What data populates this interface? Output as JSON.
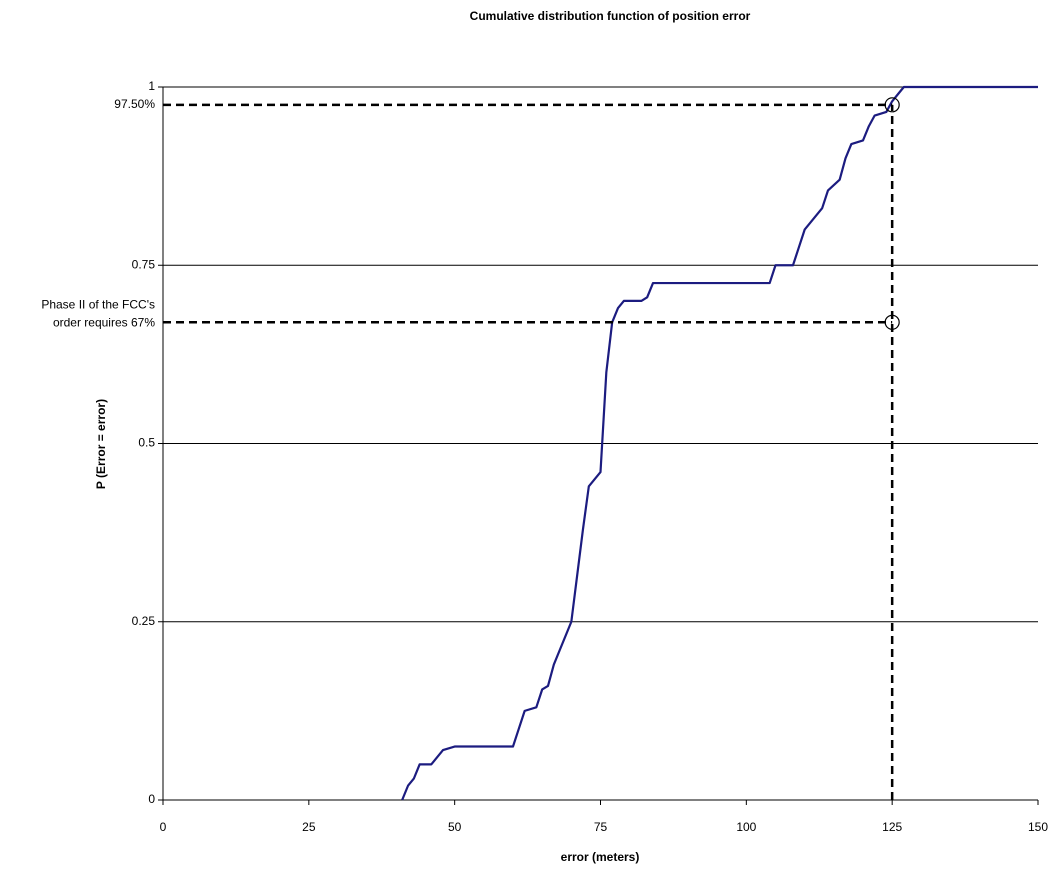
{
  "chart_data": {
    "type": "line",
    "title": "Cumulative distribution function of position error",
    "x_label": "error (meters)",
    "y_label": "P (Error = error)",
    "xlim": [
      0,
      150
    ],
    "ylim": [
      0,
      1
    ],
    "xticks": [
      0,
      25,
      50,
      75,
      100,
      125,
      150
    ],
    "yticks": [
      0,
      0.25,
      0.5,
      0.75,
      1
    ],
    "grid": true,
    "series": [
      {
        "color": "#1c1c80",
        "x": [
          41,
          42,
          43,
          44,
          46,
          47,
          48,
          50,
          60,
          61,
          62,
          64,
          65,
          66,
          67,
          68,
          70,
          72,
          73,
          74,
          75,
          76,
          77,
          78,
          79,
          82,
          83,
          84,
          104,
          105,
          108,
          109,
          110,
          111,
          113,
          114,
          116,
          117,
          118,
          120,
          121,
          122,
          124,
          125,
          126,
          127,
          150
        ],
        "values": [
          0,
          0.02,
          0.03,
          0.05,
          0.05,
          0.06,
          0.07,
          0.075,
          0.075,
          0.1,
          0.125,
          0.13,
          0.155,
          0.16,
          0.19,
          0.21,
          0.25,
          0.38,
          0.44,
          0.45,
          0.46,
          0.6,
          0.67,
          0.69,
          0.7,
          0.7,
          0.705,
          0.725,
          0.725,
          0.75,
          0.75,
          0.775,
          0.8,
          0.81,
          0.83,
          0.855,
          0.87,
          0.9,
          0.92,
          0.925,
          0.945,
          0.96,
          0.965,
          0.98,
          0.99,
          1,
          1
        ]
      }
    ],
    "annotations": [
      {
        "label": [
          "97.50%"
        ],
        "x": 125,
        "y": 0.975
      },
      {
        "label": [
          "Phase II of the FCC's",
          "order requires 67%"
        ],
        "x": 125,
        "y": 0.67
      }
    ]
  }
}
